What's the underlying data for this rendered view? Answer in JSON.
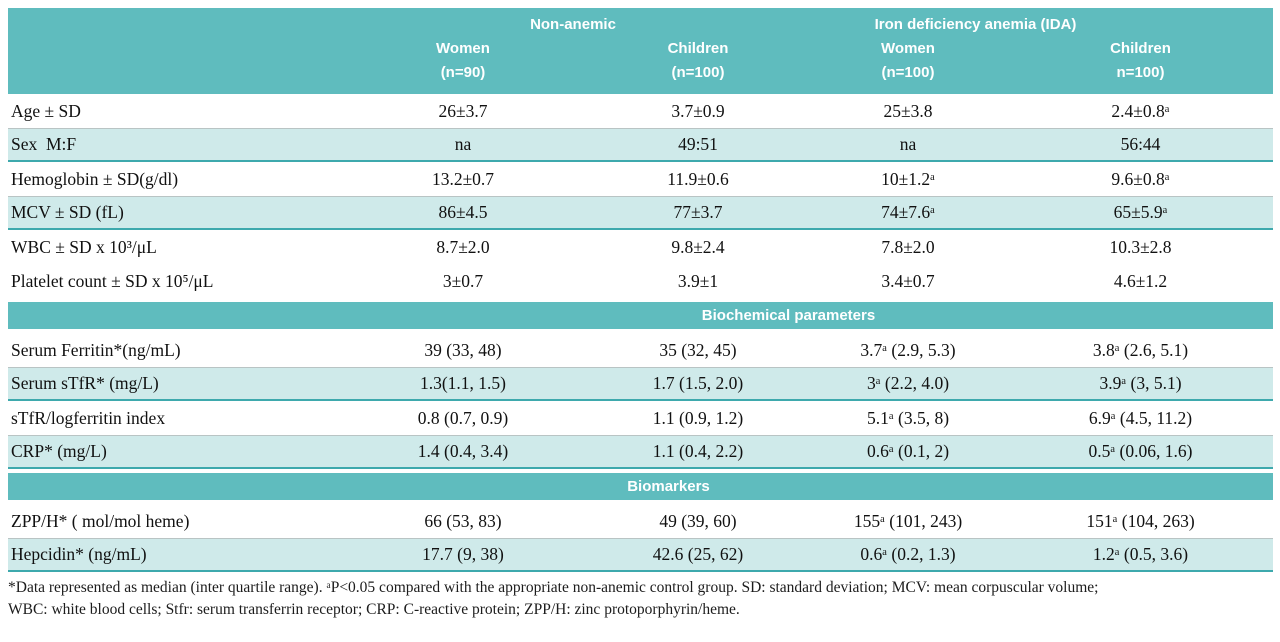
{
  "table": {
    "groups": [
      {
        "label": "Non-anemic"
      },
      {
        "label": "Iron deficiency anemia (IDA)"
      }
    ],
    "columns": [
      {
        "line1": "Women",
        "line2": "(n=90)"
      },
      {
        "line1": "Children",
        "line2": "(n=100)"
      },
      {
        "line1": "Women",
        "line2": "(n=100)"
      },
      {
        "line1": "Children",
        "line2": "n=100)"
      }
    ],
    "rows": [
      {
        "label": "Age ± SD",
        "values": [
          "26±3.7",
          "3.7±0.9",
          "25±3.8",
          "2.4±0.8ᵃ"
        ]
      },
      {
        "label": "Sex  M:F",
        "values": [
          "na",
          "49:51",
          "na",
          "56:44"
        ]
      },
      {
        "label": "Hemoglobin ± SD(g/dl)",
        "values": [
          "13.2±0.7",
          "11.9±0.6",
          "10±1.2ᵃ",
          "9.6±0.8ᵃ"
        ]
      },
      {
        "label": "MCV ± SD (fL)",
        "values": [
          "86±4.5",
          "77±3.7",
          "74±7.6ᵃ",
          "65±5.9ᵃ"
        ]
      },
      {
        "label": "WBC ± SD x 10³/μL",
        "values": [
          "8.7±2.0",
          "9.8±2.4",
          "7.8±2.0",
          "10.3±2.8"
        ]
      },
      {
        "label": "Platelet count ± SD x 10⁵/μL",
        "values": [
          "3±0.7",
          "3.9±1",
          "3.4±0.7",
          "4.6±1.2"
        ]
      },
      {
        "label": "Serum Ferritin*(ng/mL)",
        "values": [
          "39 (33, 48)",
          "35 (32, 45)",
          "3.7ᵃ (2.9, 5.3)",
          "3.8ᵃ (2.6, 5.1)"
        ]
      },
      {
        "label": "Serum sTfR* (mg/L)",
        "values": [
          "1.3(1.1, 1.5)",
          "1.7 (1.5, 2.0)",
          "3ᵃ (2.2, 4.0)",
          "3.9ᵃ (3, 5.1)"
        ]
      },
      {
        "label": "sTfR/logferritin index",
        "values": [
          "0.8 (0.7, 0.9)",
          "1.1 (0.9, 1.2)",
          "5.1ᵃ (3.5, 8)",
          "6.9ᵃ (4.5, 11.2)"
        ]
      },
      {
        "label": "CRP* (mg/L)",
        "values": [
          "1.4 (0.4, 3.4)",
          "1.1 (0.4, 2.2)",
          "0.6ᵃ (0.1, 2)",
          "0.5ᵃ (0.06, 1.6)"
        ]
      },
      {
        "label": "ZPP/H* ( mol/mol heme)",
        "values": [
          "66 (53, 83)",
          "49 (39, 60)",
          "155ᵃ (101, 243)",
          "151ᵃ (104, 263)"
        ]
      },
      {
        "label": "Hepcidin* (ng/mL)",
        "values": [
          "17.7 (9, 38)",
          "42.6 (25, 62)",
          "0.6ᵃ (0.2, 1.3)",
          "1.2ᵃ (0.5, 3.6)"
        ]
      }
    ],
    "sections": {
      "biochemical": "Biochemical parameters",
      "biomarkers": "Biomarkers"
    }
  },
  "footnote": {
    "line1": "*Data represented as median (inter quartile range). ᵃP<0.05 compared with the appropriate non-anemic control group. SD: standard deviation; MCV: mean corpuscular volume;",
    "line2": "WBC: white blood cells; Stfr: serum transferrin receptor; CRP: C-reactive protein; ZPP/H: zinc protoporphyrin/heme."
  },
  "colors": {
    "header_teal": "#5fbcbe",
    "row_shade_teal": "#cfeaea",
    "row_border_teal": "#3ea9ad",
    "header_text": "#ffffff",
    "body_text": "#111111"
  }
}
